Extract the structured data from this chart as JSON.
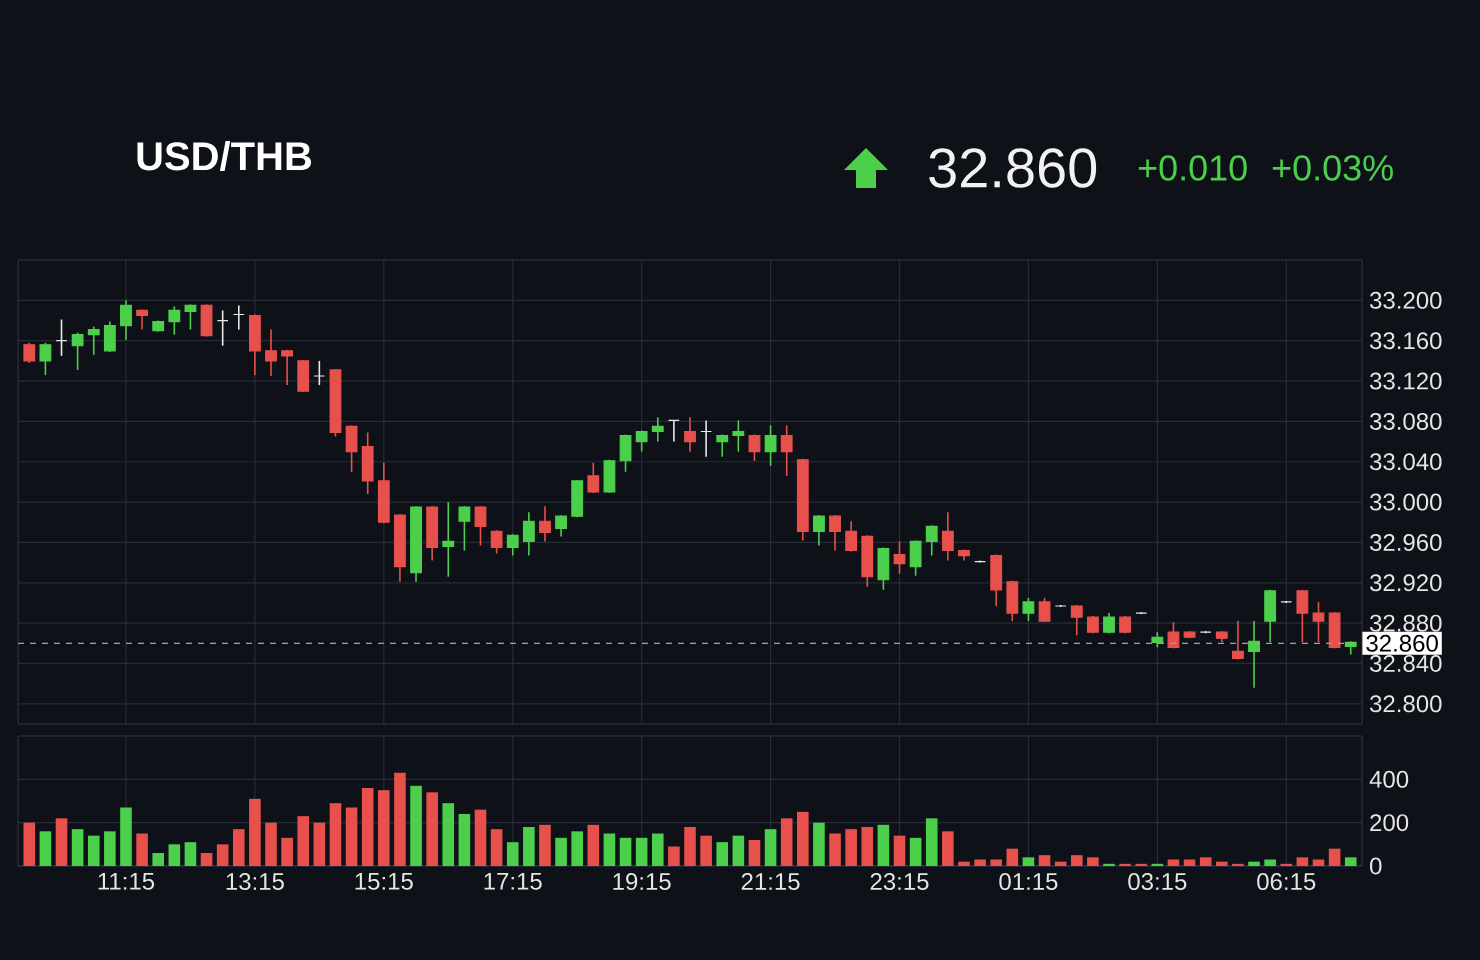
{
  "chart_data": [
    {
      "type": "candlestick",
      "title": "USD/THB",
      "annotations": [
        "32.860",
        "+0.010",
        "+0.03%"
      ],
      "categories": [
        null,
        null,
        null,
        null,
        null,
        null,
        null,
        null,
        null,
        null,
        null,
        null,
        null,
        null,
        null,
        null,
        null,
        null,
        null,
        null,
        null,
        null,
        null,
        null,
        null,
        null,
        null,
        null,
        null,
        null,
        null,
        null,
        null,
        null,
        null,
        null,
        null,
        null,
        null,
        null,
        null,
        null,
        null,
        null,
        null,
        null,
        null,
        null,
        null,
        null,
        null,
        null,
        null,
        null,
        null,
        null,
        null,
        null,
        null,
        null,
        null,
        null,
        null,
        null,
        null,
        null,
        null,
        null,
        null,
        null,
        null,
        null,
        null,
        null,
        null,
        null,
        null,
        null,
        null,
        null,
        null,
        null,
        null
      ],
      "ohlc": [
        [
          33.156,
          33.158,
          33.138,
          33.14
        ],
        [
          33.14,
          33.158,
          33.126,
          33.156
        ],
        [
          33.16,
          33.181,
          33.145,
          33.16
        ],
        [
          33.155,
          33.168,
          33.131,
          33.166
        ],
        [
          33.166,
          33.174,
          33.146,
          33.171
        ],
        [
          33.15,
          33.179,
          33.149,
          33.175
        ],
        [
          33.175,
          33.2,
          33.161,
          33.195
        ],
        [
          33.19,
          33.191,
          33.171,
          33.185
        ],
        [
          33.17,
          33.18,
          33.169,
          33.179
        ],
        [
          33.179,
          33.194,
          33.166,
          33.19
        ],
        [
          33.189,
          33.196,
          33.171,
          33.195
        ],
        [
          33.195,
          33.196,
          33.164,
          33.165
        ],
        [
          33.18,
          33.19,
          33.155,
          33.18
        ],
        [
          33.186,
          33.195,
          33.171,
          33.186
        ],
        [
          33.185,
          33.186,
          33.126,
          33.15
        ],
        [
          33.15,
          33.171,
          33.125,
          33.14
        ],
        [
          33.15,
          33.151,
          33.116,
          33.145
        ],
        [
          33.14,
          33.141,
          33.109,
          33.11
        ],
        [
          33.125,
          33.14,
          33.116,
          33.125
        ],
        [
          33.131,
          33.132,
          33.065,
          33.069
        ],
        [
          33.075,
          33.076,
          33.03,
          33.05
        ],
        [
          33.055,
          33.069,
          33.008,
          33.021
        ],
        [
          33.021,
          33.039,
          32.979,
          32.98
        ],
        [
          32.987,
          32.988,
          32.921,
          32.936
        ],
        [
          32.93,
          32.996,
          32.921,
          32.995
        ],
        [
          32.995,
          32.996,
          32.942,
          32.955
        ],
        [
          32.956,
          33.0,
          32.926,
          32.961
        ],
        [
          32.981,
          32.996,
          32.952,
          32.995
        ],
        [
          32.995,
          32.996,
          32.957,
          32.976
        ],
        [
          32.971,
          32.972,
          32.949,
          32.955
        ],
        [
          32.955,
          32.968,
          32.947,
          32.967
        ],
        [
          32.961,
          32.99,
          32.947,
          32.981
        ],
        [
          32.981,
          32.996,
          32.961,
          32.97
        ],
        [
          32.974,
          32.987,
          32.966,
          32.986
        ],
        [
          32.986,
          33.022,
          32.985,
          33.021
        ],
        [
          33.026,
          33.039,
          33.009,
          33.01
        ],
        [
          33.01,
          33.042,
          33.009,
          33.041
        ],
        [
          33.041,
          33.067,
          33.03,
          33.066
        ],
        [
          33.06,
          33.071,
          33.05,
          33.07
        ],
        [
          33.07,
          33.084,
          33.06,
          33.075
        ],
        [
          33.081,
          33.081,
          33.06,
          33.081
        ],
        [
          33.07,
          33.084,
          33.05,
          33.06
        ],
        [
          33.07,
          33.081,
          33.045,
          33.07
        ],
        [
          33.06,
          33.067,
          33.045,
          33.066
        ],
        [
          33.066,
          33.081,
          33.05,
          33.07
        ],
        [
          33.066,
          33.067,
          33.041,
          33.05
        ],
        [
          33.05,
          33.076,
          33.036,
          33.066
        ],
        [
          33.066,
          33.076,
          33.026,
          33.05
        ],
        [
          33.042,
          33.043,
          32.962,
          32.971
        ],
        [
          32.971,
          32.987,
          32.957,
          32.986
        ],
        [
          32.986,
          32.987,
          32.952,
          32.971
        ],
        [
          32.971,
          32.981,
          32.951,
          32.952
        ],
        [
          32.966,
          32.967,
          32.916,
          32.926
        ],
        [
          32.923,
          32.955,
          32.913,
          32.954
        ],
        [
          32.948,
          32.961,
          32.929,
          32.939
        ],
        [
          32.936,
          32.962,
          32.927,
          32.961
        ],
        [
          32.961,
          32.977,
          32.947,
          32.976
        ],
        [
          32.971,
          32.99,
          32.942,
          32.952
        ],
        [
          32.952,
          32.953,
          32.942,
          32.947
        ],
        [
          32.941,
          32.942,
          32.94,
          32.941
        ],
        [
          32.947,
          32.948,
          32.897,
          32.913
        ],
        [
          32.921,
          32.922,
          32.882,
          32.89
        ],
        [
          32.89,
          32.905,
          32.882,
          32.901
        ],
        [
          32.901,
          32.905,
          32.881,
          32.882
        ],
        [
          32.897,
          32.898,
          32.896,
          32.897
        ],
        [
          32.897,
          32.898,
          32.868,
          32.886
        ],
        [
          32.886,
          32.887,
          32.87,
          32.871
        ],
        [
          32.871,
          32.89,
          32.87,
          32.886
        ],
        [
          32.886,
          32.887,
          32.87,
          32.871
        ],
        [
          32.89,
          32.891,
          32.889,
          32.89
        ],
        [
          32.861,
          32.871,
          32.856,
          32.866
        ],
        [
          32.871,
          32.881,
          32.855,
          32.856
        ],
        [
          32.871,
          32.872,
          32.865,
          32.866
        ],
        [
          32.871,
          32.872,
          32.87,
          32.871
        ],
        [
          32.871,
          32.872,
          32.861,
          32.865
        ],
        [
          32.852,
          32.882,
          32.844,
          32.845
        ],
        [
          32.852,
          32.882,
          32.816,
          32.862
        ],
        [
          32.882,
          32.913,
          32.861,
          32.912
        ],
        [
          32.901,
          32.902,
          32.9,
          32.901
        ],
        [
          32.912,
          32.913,
          32.861,
          32.89
        ],
        [
          32.89,
          32.901,
          32.861,
          32.882
        ],
        [
          32.89,
          32.891,
          32.855,
          32.856
        ],
        [
          32.857,
          32.862,
          32.849,
          32.861
        ]
      ],
      "colors": [
        "#e8504c",
        "#4cd04c",
        "#e8e8e8",
        "#4cd04c",
        "#4cd04c",
        "#4cd04c",
        "#4cd04c",
        "#e8504c",
        "#4cd04c",
        "#4cd04c",
        "#4cd04c",
        "#e8504c",
        "#e8e8e8",
        "#e8e8e8",
        "#e8504c",
        "#e8504c",
        "#e8504c",
        "#e8504c",
        "#e8e8e8",
        "#e8504c",
        "#e8504c",
        "#e8504c",
        "#e8504c",
        "#e8504c",
        "#4cd04c",
        "#e8504c",
        "#4cd04c",
        "#4cd04c",
        "#e8504c",
        "#e8504c",
        "#4cd04c",
        "#4cd04c",
        "#e8504c",
        "#4cd04c",
        "#4cd04c",
        "#e8504c",
        "#4cd04c",
        "#4cd04c",
        "#4cd04c",
        "#4cd04c",
        "#e8e8e8",
        "#e8504c",
        "#e8e8e8",
        "#4cd04c",
        "#4cd04c",
        "#e8504c",
        "#4cd04c",
        "#e8504c",
        "#e8504c",
        "#4cd04c",
        "#e8504c",
        "#e8504c",
        "#e8504c",
        "#4cd04c",
        "#e8504c",
        "#4cd04c",
        "#4cd04c",
        "#e8504c",
        "#e8504c",
        "#e8e8e8",
        "#e8504c",
        "#e8504c",
        "#4cd04c",
        "#e8504c",
        "#e8e8e8",
        "#e8504c",
        "#e8504c",
        "#4cd04c",
        "#e8504c",
        "#e8e8e8",
        "#4cd04c",
        "#e8504c",
        "#e8504c",
        "#e8e8e8",
        "#e8504c",
        "#e8504c",
        "#4cd04c",
        "#4cd04c",
        "#e8e8e8",
        "#e8504c",
        "#e8504c",
        "#e8504c",
        "#4cd04c"
      ],
      "ylim": [
        32.78,
        33.24
      ],
      "yticks": [
        {
          "value": 32.8,
          "label": "32.800"
        },
        {
          "value": 32.84,
          "label": "32.840"
        },
        {
          "value": 32.88,
          "label": "32.880"
        },
        {
          "value": 32.92,
          "label": "32.920"
        },
        {
          "value": 32.96,
          "label": "32.960"
        },
        {
          "value": 33.0,
          "label": "33.000"
        },
        {
          "value": 33.04,
          "label": "33.040"
        },
        {
          "value": 33.08,
          "label": "33.080"
        },
        {
          "value": 33.12,
          "label": "33.120"
        },
        {
          "value": 33.16,
          "label": "33.160"
        },
        {
          "value": 33.2,
          "label": "33.200"
        }
      ],
      "ref_lines": [
        {
          "axis": "y",
          "value": 32.86,
          "label": "32.860",
          "line_style": "dashed"
        }
      ],
      "grid": true,
      "tick_labels": "y"
    },
    {
      "type": "bar",
      "categories": [
        null,
        null,
        null,
        null,
        null,
        null,
        "11:15",
        null,
        null,
        null,
        null,
        null,
        null,
        null,
        "13:15",
        null,
        null,
        null,
        null,
        null,
        null,
        null,
        "15:15",
        null,
        null,
        null,
        null,
        null,
        null,
        null,
        "17:15",
        null,
        null,
        null,
        null,
        null,
        null,
        null,
        "19:15",
        null,
        null,
        null,
        null,
        null,
        null,
        null,
        "21:15",
        null,
        null,
        null,
        null,
        null,
        null,
        null,
        "23:15",
        null,
        null,
        null,
        null,
        null,
        null,
        null,
        "01:15",
        null,
        null,
        null,
        null,
        null,
        null,
        null,
        "03:15",
        null,
        null,
        null,
        null,
        null,
        null,
        null,
        "06:15",
        null,
        null,
        null,
        null
      ],
      "values": [
        200,
        160,
        220,
        170,
        140,
        160,
        270,
        150,
        60,
        100,
        110,
        60,
        100,
        170,
        310,
        200,
        130,
        230,
        200,
        290,
        270,
        360,
        350,
        430,
        370,
        340,
        290,
        240,
        260,
        170,
        110,
        180,
        190,
        130,
        160,
        190,
        150,
        130,
        130,
        150,
        90,
        180,
        140,
        110,
        140,
        120,
        170,
        220,
        250,
        200,
        150,
        170,
        180,
        190,
        140,
        130,
        220,
        160,
        20,
        30,
        30,
        80,
        40,
        50,
        20,
        50,
        40,
        10,
        10,
        10,
        10,
        30,
        30,
        40,
        20,
        10,
        20,
        30,
        10,
        40,
        30,
        80,
        40
      ],
      "colors": [
        "#e8504c",
        "#4cd04c",
        "#e8504c",
        "#4cd04c",
        "#4cd04c",
        "#4cd04c",
        "#4cd04c",
        "#e8504c",
        "#4cd04c",
        "#4cd04c",
        "#4cd04c",
        "#e8504c",
        "#e8504c",
        "#e8504c",
        "#e8504c",
        "#e8504c",
        "#e8504c",
        "#e8504c",
        "#e8504c",
        "#e8504c",
        "#e8504c",
        "#e8504c",
        "#e8504c",
        "#e8504c",
        "#4cd04c",
        "#e8504c",
        "#4cd04c",
        "#4cd04c",
        "#e8504c",
        "#e8504c",
        "#4cd04c",
        "#4cd04c",
        "#e8504c",
        "#4cd04c",
        "#4cd04c",
        "#e8504c",
        "#4cd04c",
        "#4cd04c",
        "#4cd04c",
        "#4cd04c",
        "#e8504c",
        "#e8504c",
        "#e8504c",
        "#4cd04c",
        "#4cd04c",
        "#e8504c",
        "#4cd04c",
        "#e8504c",
        "#e8504c",
        "#4cd04c",
        "#e8504c",
        "#e8504c",
        "#e8504c",
        "#4cd04c",
        "#e8504c",
        "#4cd04c",
        "#4cd04c",
        "#e8504c",
        "#e8504c",
        "#e8504c",
        "#e8504c",
        "#e8504c",
        "#4cd04c",
        "#e8504c",
        "#e8504c",
        "#e8504c",
        "#e8504c",
        "#4cd04c",
        "#e8504c",
        "#e8504c",
        "#4cd04c",
        "#e8504c",
        "#e8504c",
        "#e8504c",
        "#e8504c",
        "#e8504c",
        "#4cd04c",
        "#4cd04c",
        "#e8504c",
        "#e8504c",
        "#e8504c",
        "#e8504c",
        "#4cd04c"
      ],
      "ylim": [
        0,
        600
      ],
      "yticks": [
        0,
        200,
        400
      ],
      "grid": true
    }
  ]
}
